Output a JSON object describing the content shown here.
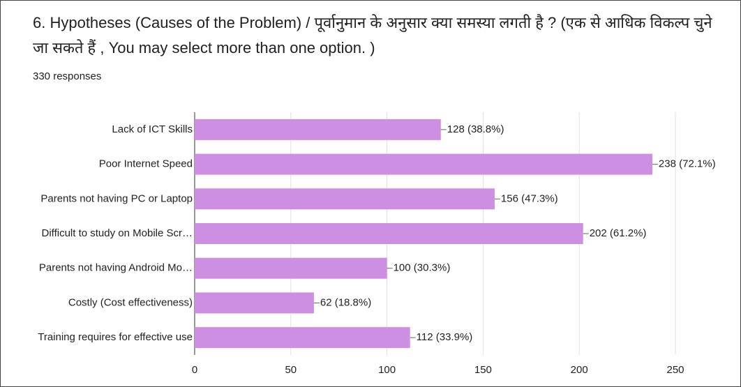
{
  "chart_data": {
    "type": "bar",
    "orientation": "horizontal",
    "title": "6. Hypotheses (Causes of the Problem) / पूर्वानुमान के अनुसार क्या समस्या लगती है ? (एक से आधिक विकल्प चुने जा सकते हैं , You may select more than one option. )",
    "subtitle": "330 responses",
    "categories": [
      "Lack of ICT Skills",
      "Poor Internet Speed",
      "Parents not having PC or Laptop",
      "Difficult to study on Mobile Scr…",
      "Parents not having Android Mo…",
      "Costly (Cost effectiveness)",
      "Training requires for effective use"
    ],
    "values": [
      128,
      238,
      156,
      202,
      100,
      62,
      112
    ],
    "value_labels": [
      "128 (38.8%)",
      "238 (72.1%)",
      "156 (47.3%)",
      "202 (61.2%)",
      "100 (30.3%)",
      "62 (18.8%)",
      "112 (33.9%)"
    ],
    "color": "#cd8fe2",
    "xlim": [
      0,
      250
    ],
    "xticks": [
      0,
      50,
      100,
      150,
      200,
      250
    ],
    "grid": true
  }
}
